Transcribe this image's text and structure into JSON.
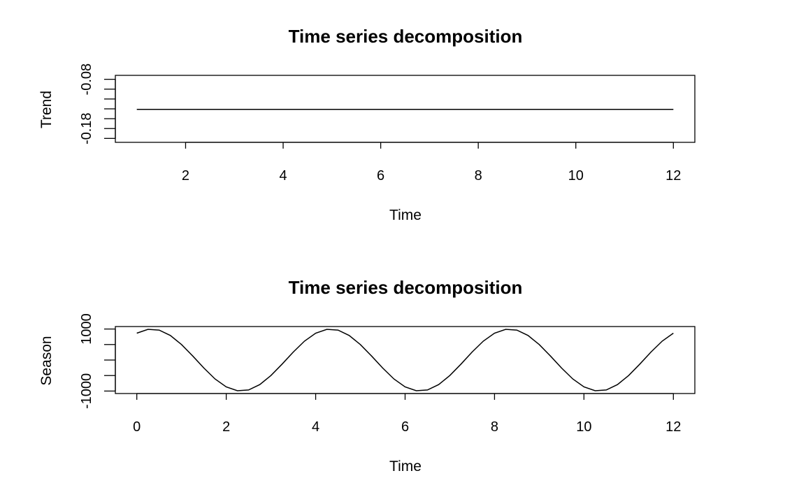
{
  "chart_data": [
    {
      "type": "line",
      "title": "Time series decomposition",
      "xlabel": "Time",
      "ylabel": "Trend",
      "xlim": [
        0.56,
        12.44
      ],
      "ylim": [
        -0.208,
        -0.072
      ],
      "x_ticks": [
        2,
        4,
        6,
        8,
        10,
        12
      ],
      "x_tick_labels": [
        "2",
        "4",
        "6",
        "8",
        "10",
        "12"
      ],
      "y_ticks": [
        -0.2,
        -0.18,
        -0.16,
        -0.14,
        -0.12,
        -0.1,
        -0.08
      ],
      "y_tick_labels": [
        "",
        "-0.18",
        "",
        "",
        "",
        "",
        "-0.08"
      ],
      "grid": false,
      "series": [
        {
          "x": [
            1,
            12
          ],
          "y": [
            -0.141,
            -0.141
          ]
        }
      ]
    },
    {
      "type": "line",
      "title": "Time series decomposition",
      "xlabel": "Time",
      "ylabel": "Season",
      "xlim": [
        -0.48,
        12.48
      ],
      "ylim": [
        -1080,
        1080
      ],
      "x_ticks": [
        0,
        2,
        4,
        6,
        8,
        10,
        12
      ],
      "x_tick_labels": [
        "0",
        "2",
        "4",
        "6",
        "8",
        "10",
        "12"
      ],
      "y_ticks": [
        -1000,
        -500,
        0,
        500,
        1000
      ],
      "y_tick_labels": [
        "-1000",
        "",
        "",
        "",
        "1000"
      ],
      "grid": false,
      "series": [
        {
          "x": [
            0,
            0.25,
            0.5,
            0.75,
            1,
            1.25,
            1.5,
            1.75,
            2,
            2.25,
            2.5,
            2.75,
            3,
            3.25,
            3.5,
            3.75,
            4,
            4.25,
            4.5,
            4.75,
            5,
            5.25,
            5.5,
            5.75,
            6,
            6.25,
            6.5,
            6.75,
            7,
            7.25,
            7.5,
            7.75,
            8,
            8.25,
            8.5,
            8.75,
            9,
            9.25,
            9.5,
            9.75,
            10,
            10.25,
            10.5,
            10.75,
            11,
            11.25,
            11.5,
            11.75,
            12
          ],
          "y": [
            866,
            991,
            966,
            793,
            500,
            131,
            -259,
            -609,
            -866,
            -991,
            -966,
            -793,
            -500,
            -131,
            259,
            609,
            866,
            991,
            966,
            793,
            500,
            131,
            -259,
            -609,
            -866,
            -991,
            -966,
            -793,
            -500,
            -131,
            259,
            609,
            866,
            991,
            966,
            793,
            500,
            131,
            -259,
            -609,
            -866,
            -991,
            -966,
            -793,
            -500,
            -131,
            259,
            609,
            866
          ]
        }
      ]
    }
  ]
}
